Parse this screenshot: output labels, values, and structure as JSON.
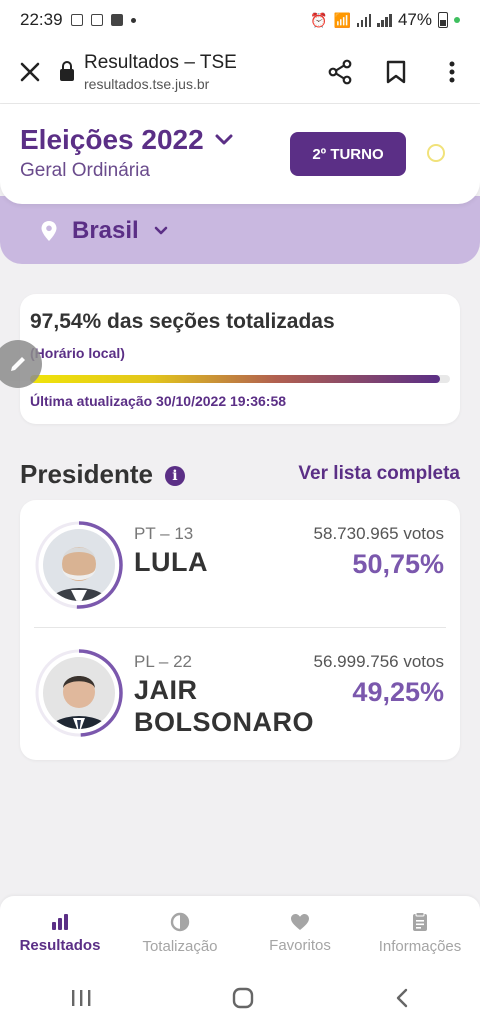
{
  "status_bar": {
    "time": "22:39",
    "battery": "47%"
  },
  "browser": {
    "title": "Resultados – TSE",
    "url": "resultados.tse.jus.br"
  },
  "election": {
    "title": "Eleições 2022",
    "subtitle": "Geral Ordinária",
    "turno_label": "2º TURNO",
    "region": "Brasil"
  },
  "progress": {
    "headline": "97,54% das seções totalizadas",
    "local_note": "(Horário local)",
    "percent": 97.54,
    "last_update": "Última atualização 30/10/2022 19:36:58"
  },
  "section": {
    "title": "Presidente",
    "see_all": "Ver lista completa"
  },
  "candidates": [
    {
      "party": "PT – 13",
      "name_lines": [
        "LULA"
      ],
      "votes": "58.730.965 votos",
      "percent_label": "50,75%",
      "percent": 50.75
    },
    {
      "party": "PL – 22",
      "name_lines": [
        "JAIR",
        "BOLSONARO"
      ],
      "votes": "56.999.756 votos",
      "percent_label": "49,25%",
      "percent": 49.25
    }
  ],
  "bottom_nav": [
    {
      "label": "Resultados",
      "icon": "bar-chart-icon",
      "active": true
    },
    {
      "label": "Totalização",
      "icon": "pie-chart-icon",
      "active": false
    },
    {
      "label": "Favoritos",
      "icon": "heart-icon",
      "active": false
    },
    {
      "label": "Informações",
      "icon": "clipboard-icon",
      "active": false
    }
  ],
  "colors": {
    "primary": "#5b2f86",
    "accent": "#7b58ad",
    "band": "#c9b8e0"
  }
}
